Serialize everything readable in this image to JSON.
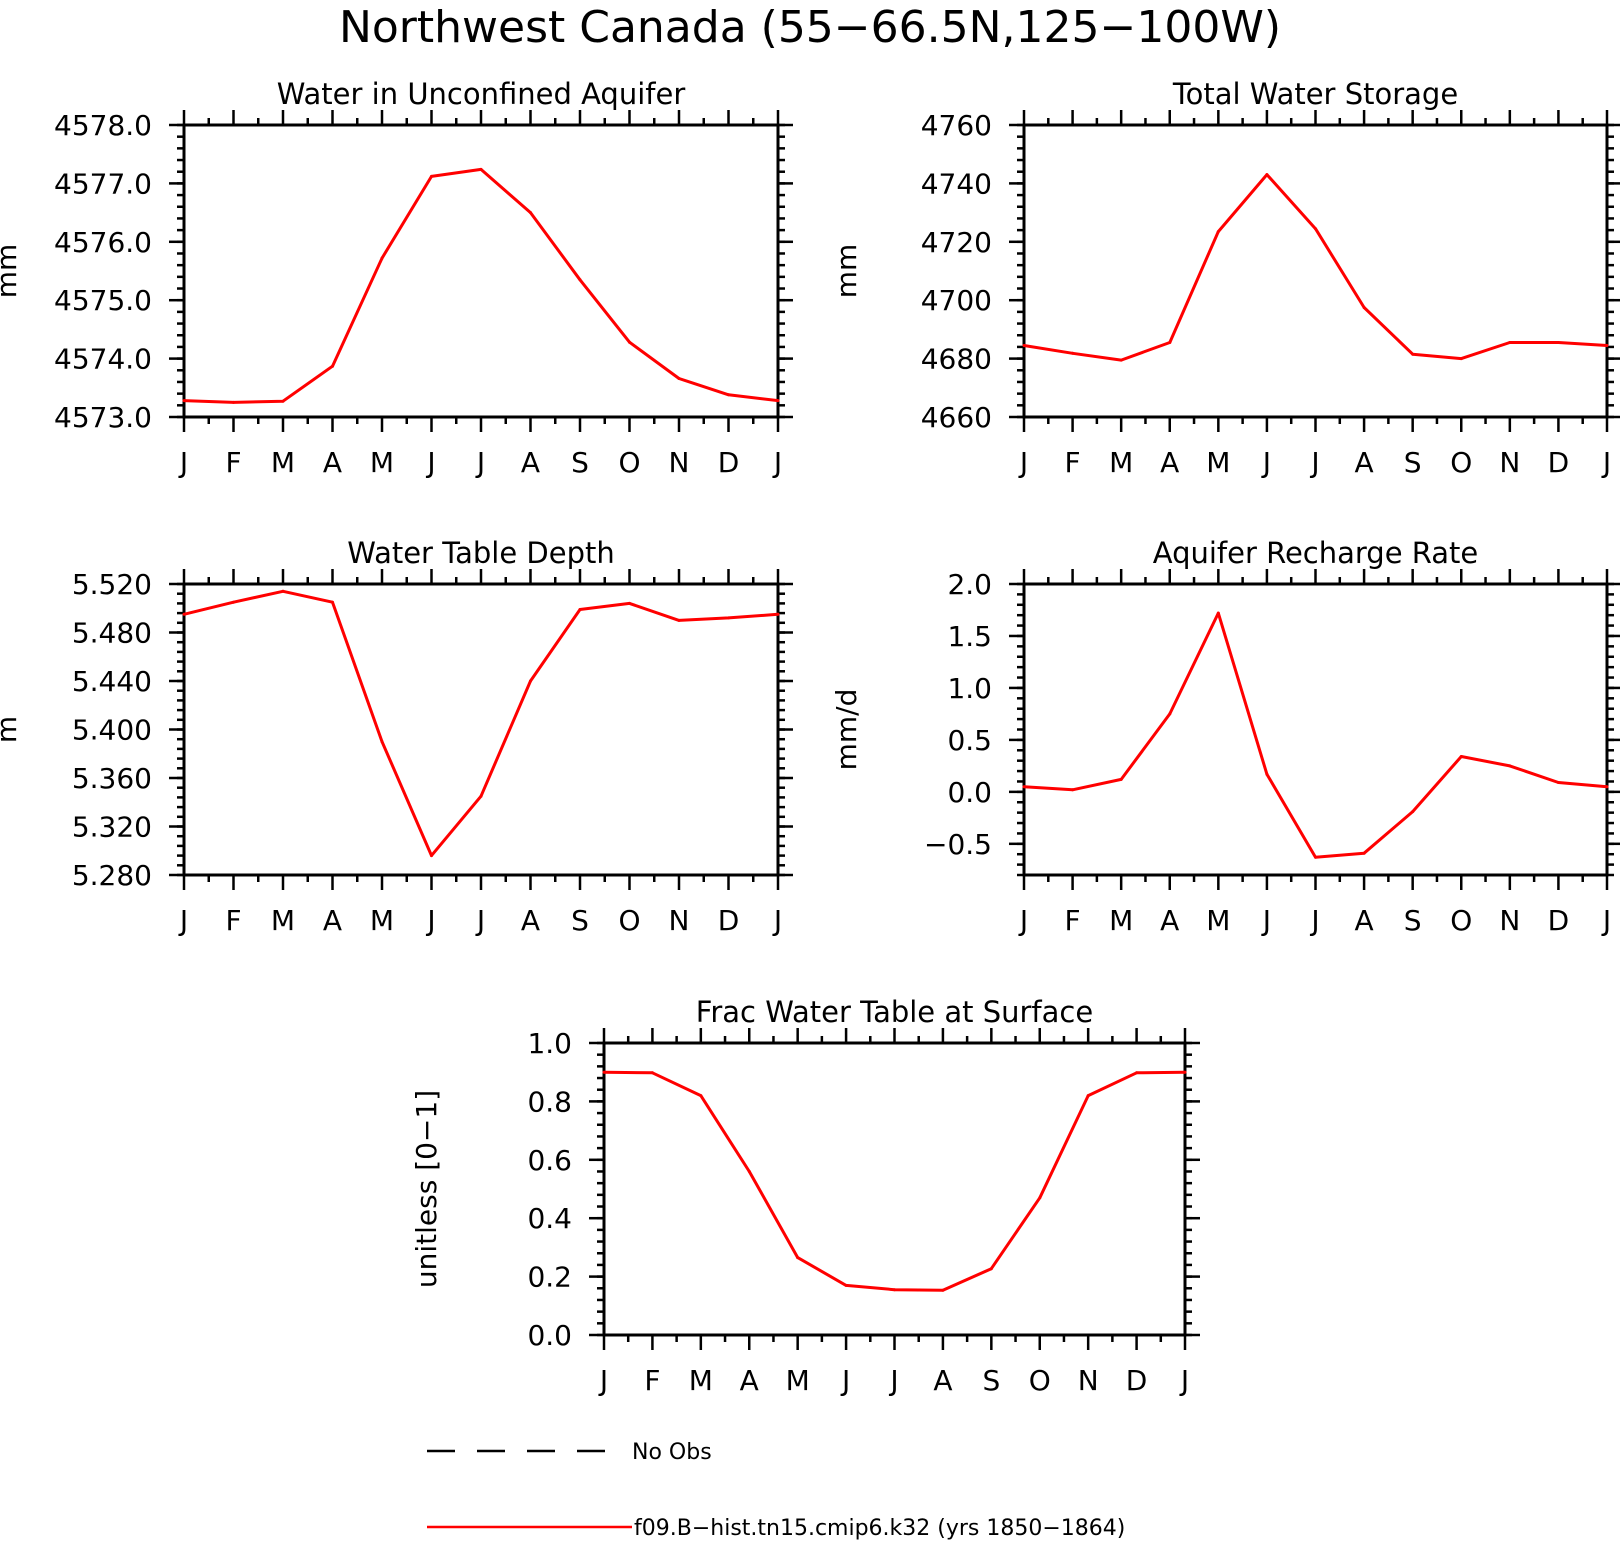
{
  "figure": {
    "title": "Northwest Canada (55−66.5N,125−100W)",
    "legend": [
      {
        "label": "No Obs",
        "style": "dashed",
        "color": "#000000"
      },
      {
        "label": "f09.B−hist.tn15.cmip6.k32 (yrs 1850−1864)",
        "style": "solid",
        "color": "#ff0000"
      }
    ]
  },
  "chart_data": [
    {
      "type": "line",
      "title": "Water in Unconfined Aquifer",
      "ylabel": "mm",
      "xlabel": "",
      "categories": [
        "J",
        "F",
        "M",
        "A",
        "M",
        "J",
        "J",
        "A",
        "S",
        "O",
        "N",
        "D",
        "J"
      ],
      "ylim": [
        4573.0,
        4578.0
      ],
      "yticks": [
        4573.0,
        4574.0,
        4575.0,
        4576.0,
        4577.0,
        4578.0
      ],
      "ytick_labels": [
        "4573.0",
        "4574.0",
        "4575.0",
        "4576.0",
        "4577.0",
        "4578.0"
      ],
      "series": [
        {
          "color": "#ff0000",
          "values": [
            4573.28,
            4573.25,
            4573.27,
            4573.87,
            4575.72,
            4577.12,
            4577.24,
            4576.5,
            4575.35,
            4574.28,
            4573.66,
            4573.38,
            4573.28
          ]
        }
      ]
    },
    {
      "type": "line",
      "title": "Total Water Storage",
      "ylabel": "mm",
      "xlabel": "",
      "categories": [
        "J",
        "F",
        "M",
        "A",
        "M",
        "J",
        "J",
        "A",
        "S",
        "O",
        "N",
        "D",
        "J"
      ],
      "ylim": [
        4660,
        4760
      ],
      "yticks": [
        4660,
        4680,
        4700,
        4720,
        4740,
        4760
      ],
      "ytick_labels": [
        "4660",
        "4680",
        "4700",
        "4720",
        "4740",
        "4760"
      ],
      "series": [
        {
          "color": "#ff0000",
          "values": [
            4684.5,
            4681.8,
            4679.5,
            4685.5,
            4723.5,
            4743,
            4724.5,
            4697.5,
            4681.5,
            4680,
            4685.5,
            4685.5,
            4684.5
          ]
        }
      ]
    },
    {
      "type": "line",
      "title": "Water Table Depth",
      "ylabel": "m",
      "xlabel": "",
      "categories": [
        "J",
        "F",
        "M",
        "A",
        "M",
        "J",
        "J",
        "A",
        "S",
        "O",
        "N",
        "D",
        "J"
      ],
      "ylim": [
        5.28,
        5.52
      ],
      "yticks": [
        5.28,
        5.32,
        5.36,
        5.4,
        5.44,
        5.48,
        5.52
      ],
      "ytick_labels": [
        "5.280",
        "5.320",
        "5.360",
        "5.400",
        "5.440",
        "5.480",
        "5.520"
      ],
      "series": [
        {
          "color": "#ff0000",
          "values": [
            5.495,
            5.505,
            5.514,
            5.505,
            5.39,
            5.296,
            5.345,
            5.44,
            5.499,
            5.504,
            5.49,
            5.492,
            5.495
          ]
        }
      ]
    },
    {
      "type": "line",
      "title": "Aquifer Recharge Rate",
      "ylabel": "mm/d",
      "xlabel": "",
      "categories": [
        "J",
        "F",
        "M",
        "A",
        "M",
        "J",
        "J",
        "A",
        "S",
        "O",
        "N",
        "D",
        "J"
      ],
      "ylim": [
        -0.8,
        2.0
      ],
      "yticks": [
        -0.5,
        0.0,
        0.5,
        1.0,
        1.5,
        2.0
      ],
      "ytick_labels": [
        "−0.5",
        "0.0",
        "0.5",
        "1.0",
        "1.5",
        "2.0"
      ],
      "series": [
        {
          "color": "#ff0000",
          "values": [
            0.05,
            0.02,
            0.12,
            0.75,
            1.72,
            0.17,
            -0.63,
            -0.59,
            -0.19,
            0.34,
            0.25,
            0.09,
            0.05
          ]
        }
      ]
    },
    {
      "type": "line",
      "title": "Frac Water Table at Surface",
      "ylabel": "unitless [0−1]",
      "xlabel": "",
      "categories": [
        "J",
        "F",
        "M",
        "A",
        "M",
        "J",
        "J",
        "A",
        "S",
        "O",
        "N",
        "D",
        "J"
      ],
      "ylim": [
        0.0,
        1.0
      ],
      "yticks": [
        0.0,
        0.2,
        0.4,
        0.6,
        0.8,
        1.0
      ],
      "ytick_labels": [
        "0.0",
        "0.2",
        "0.4",
        "0.6",
        "0.8",
        "1.0"
      ],
      "series": [
        {
          "color": "#ff0000",
          "values": [
            0.9,
            0.898,
            0.82,
            0.56,
            0.265,
            0.17,
            0.155,
            0.153,
            0.227,
            0.47,
            0.82,
            0.898,
            0.9
          ]
        }
      ]
    }
  ]
}
